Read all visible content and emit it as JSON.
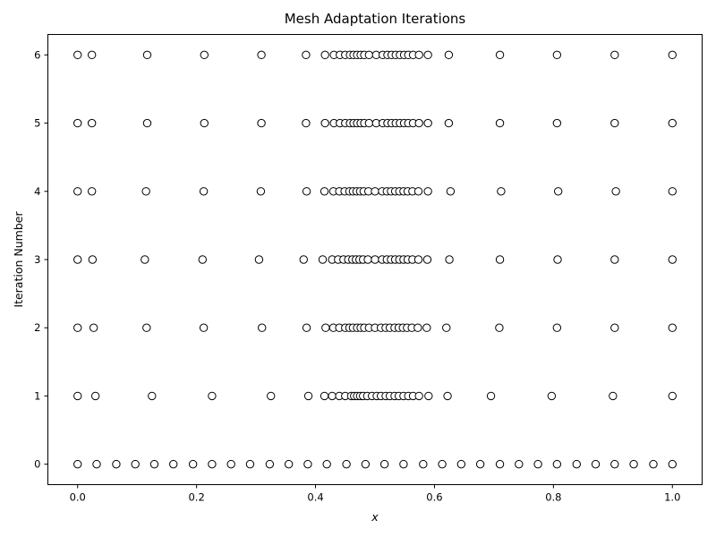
{
  "chart_data": {
    "type": "scatter",
    "title": "Mesh Adaptation Iterations",
    "xlabel": "x",
    "ylabel": "Iteration Number",
    "xlim": [
      -0.05,
      1.05
    ],
    "ylim": [
      -0.3,
      6.3
    ],
    "xticks": [
      "0.0",
      "0.2",
      "0.4",
      "0.6",
      "0.8",
      "1.0"
    ],
    "yticks": [
      "0",
      "1",
      "2",
      "3",
      "4",
      "5",
      "6"
    ],
    "grid": false,
    "marker": "open-circle",
    "colors": {
      "marker_edge": "#000000",
      "marker_face": "#ffffff"
    },
    "series": [
      {
        "y": 0,
        "x": [
          0,
          0.032,
          0.065,
          0.097,
          0.129,
          0.161,
          0.194,
          0.226,
          0.258,
          0.29,
          0.323,
          0.355,
          0.387,
          0.419,
          0.452,
          0.484,
          0.516,
          0.548,
          0.581,
          0.613,
          0.645,
          0.677,
          0.71,
          0.742,
          0.774,
          0.806,
          0.839,
          0.871,
          0.903,
          0.935,
          0.968,
          1.0
        ]
      },
      {
        "y": 1,
        "x": [
          0,
          0.03,
          0.125,
          0.226,
          0.325,
          0.388,
          0.415,
          0.428,
          0.44,
          0.45,
          0.46,
          0.465,
          0.47,
          0.475,
          0.48,
          0.487,
          0.495,
          0.503,
          0.51,
          0.518,
          0.525,
          0.533,
          0.54,
          0.548,
          0.556,
          0.564,
          0.574,
          0.59,
          0.622,
          0.695,
          0.797,
          0.9,
          1.0
        ]
      },
      {
        "y": 2,
        "x": [
          0,
          0.027,
          0.116,
          0.212,
          0.31,
          0.385,
          0.417,
          0.43,
          0.44,
          0.45,
          0.457,
          0.463,
          0.47,
          0.476,
          0.482,
          0.49,
          0.5,
          0.51,
          0.518,
          0.525,
          0.533,
          0.54,
          0.547,
          0.554,
          0.562,
          0.572,
          0.587,
          0.62,
          0.709,
          0.806,
          0.903,
          1.0
        ]
      },
      {
        "y": 3,
        "x": [
          0,
          0.025,
          0.113,
          0.21,
          0.305,
          0.38,
          0.412,
          0.428,
          0.438,
          0.447,
          0.455,
          0.462,
          0.468,
          0.474,
          0.48,
          0.488,
          0.5,
          0.512,
          0.52,
          0.527,
          0.534,
          0.541,
          0.548,
          0.555,
          0.563,
          0.573,
          0.588,
          0.625,
          0.71,
          0.807,
          0.903,
          1.0
        ]
      },
      {
        "y": 4,
        "x": [
          0,
          0.024,
          0.115,
          0.212,
          0.308,
          0.385,
          0.415,
          0.43,
          0.44,
          0.449,
          0.457,
          0.463,
          0.469,
          0.475,
          0.481,
          0.489,
          0.5,
          0.512,
          0.52,
          0.527,
          0.534,
          0.541,
          0.548,
          0.555,
          0.563,
          0.573,
          0.589,
          0.627,
          0.712,
          0.808,
          0.905,
          1.0
        ]
      },
      {
        "y": 5,
        "x": [
          0,
          0.024,
          0.117,
          0.213,
          0.309,
          0.384,
          0.416,
          0.431,
          0.441,
          0.45,
          0.458,
          0.464,
          0.47,
          0.476,
          0.482,
          0.49,
          0.502,
          0.513,
          0.521,
          0.528,
          0.535,
          0.542,
          0.549,
          0.556,
          0.564,
          0.574,
          0.589,
          0.624,
          0.71,
          0.806,
          0.903,
          1.0
        ]
      },
      {
        "y": 6,
        "x": [
          0,
          0.024,
          0.117,
          0.213,
          0.309,
          0.384,
          0.416,
          0.431,
          0.441,
          0.45,
          0.458,
          0.464,
          0.47,
          0.476,
          0.482,
          0.49,
          0.502,
          0.513,
          0.521,
          0.528,
          0.535,
          0.542,
          0.549,
          0.556,
          0.564,
          0.574,
          0.589,
          0.624,
          0.71,
          0.806,
          0.903,
          1.0
        ]
      }
    ]
  }
}
